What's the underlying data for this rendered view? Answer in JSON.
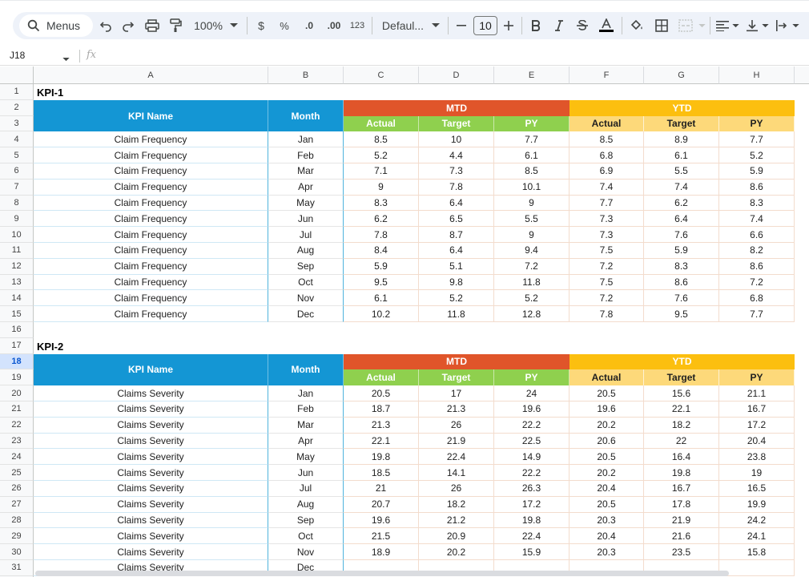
{
  "toolbar": {
    "menus_label": "Menus",
    "zoom": "100%",
    "currency": "$",
    "percent": "%",
    "dec_decrease": ".0",
    "dec_increase": ".00",
    "number_format": "123",
    "font": "Defaul...",
    "font_size": "10"
  },
  "formula_bar": {
    "name_box": "J18",
    "fx": "fx"
  },
  "columns": [
    "A",
    "B",
    "C",
    "D",
    "E",
    "F",
    "G",
    "H"
  ],
  "active_row": 18,
  "kpi1": {
    "title": "KPI-1",
    "kpi_name_header": "KPI Name",
    "month_header": "Month",
    "mtd_header": "MTD",
    "ytd_header": "YTD",
    "sub_headers": [
      "Actual",
      "Target",
      "PY"
    ],
    "rows": [
      [
        "Claim Frequency",
        "Jan",
        "8.5",
        "10",
        "7.7",
        "8.5",
        "8.9",
        "7.7"
      ],
      [
        "Claim Frequency",
        "Feb",
        "5.2",
        "4.4",
        "6.1",
        "6.8",
        "6.1",
        "5.2"
      ],
      [
        "Claim Frequency",
        "Mar",
        "7.1",
        "7.3",
        "8.5",
        "6.9",
        "5.5",
        "5.9"
      ],
      [
        "Claim Frequency",
        "Apr",
        "9",
        "7.8",
        "10.1",
        "7.4",
        "7.4",
        "8.6"
      ],
      [
        "Claim Frequency",
        "May",
        "8.3",
        "6.4",
        "9",
        "7.7",
        "6.2",
        "8.3"
      ],
      [
        "Claim Frequency",
        "Jun",
        "6.2",
        "6.5",
        "5.5",
        "7.3",
        "6.4",
        "7.4"
      ],
      [
        "Claim Frequency",
        "Jul",
        "7.8",
        "8.7",
        "9",
        "7.3",
        "7.6",
        "6.6"
      ],
      [
        "Claim Frequency",
        "Aug",
        "8.4",
        "6.4",
        "9.4",
        "7.5",
        "5.9",
        "8.2"
      ],
      [
        "Claim Frequency",
        "Sep",
        "5.9",
        "5.1",
        "7.2",
        "7.2",
        "8.3",
        "8.6"
      ],
      [
        "Claim Frequency",
        "Oct",
        "9.5",
        "9.8",
        "11.8",
        "7.5",
        "8.6",
        "7.2"
      ],
      [
        "Claim Frequency",
        "Nov",
        "6.1",
        "5.2",
        "5.2",
        "7.2",
        "7.6",
        "6.8"
      ],
      [
        "Claim Frequency",
        "Dec",
        "10.2",
        "11.8",
        "12.8",
        "7.8",
        "9.5",
        "7.7"
      ]
    ]
  },
  "kpi2": {
    "title": "KPI-2",
    "kpi_name_header": "KPI Name",
    "month_header": "Month",
    "mtd_header": "MTD",
    "ytd_header": "YTD",
    "sub_headers": [
      "Actual",
      "Target",
      "PY"
    ],
    "rows": [
      [
        "Claims Severity",
        "Jan",
        "20.5",
        "17",
        "24",
        "20.5",
        "15.6",
        "21.1"
      ],
      [
        "Claims Severity",
        "Feb",
        "18.7",
        "21.3",
        "19.6",
        "19.6",
        "22.1",
        "16.7"
      ],
      [
        "Claims Severity",
        "Mar",
        "21.3",
        "26",
        "22.2",
        "20.2",
        "18.2",
        "17.2"
      ],
      [
        "Claims Severity",
        "Apr",
        "22.1",
        "21.9",
        "22.5",
        "20.6",
        "22",
        "20.4"
      ],
      [
        "Claims Severity",
        "May",
        "19.8",
        "22.4",
        "14.9",
        "20.5",
        "16.4",
        "23.8"
      ],
      [
        "Claims Severity",
        "Jun",
        "18.5",
        "14.1",
        "22.2",
        "20.2",
        "19.8",
        "19"
      ],
      [
        "Claims Severity",
        "Jul",
        "21",
        "26",
        "26.3",
        "20.4",
        "16.7",
        "16.5"
      ],
      [
        "Claims Severity",
        "Aug",
        "20.7",
        "18.2",
        "17.2",
        "20.5",
        "17.8",
        "19.9"
      ],
      [
        "Claims Severity",
        "Sep",
        "19.6",
        "21.2",
        "19.8",
        "20.3",
        "21.9",
        "24.2"
      ],
      [
        "Claims Severity",
        "Oct",
        "21.5",
        "20.9",
        "22.4",
        "20.4",
        "21.6",
        "24.1"
      ],
      [
        "Claims Severity",
        "Nov",
        "18.9",
        "20.2",
        "15.9",
        "20.3",
        "23.5",
        "15.8"
      ],
      [
        "Claims Severity",
        "Dec",
        "",
        "",
        "",
        "",
        "",
        ""
      ]
    ]
  }
}
